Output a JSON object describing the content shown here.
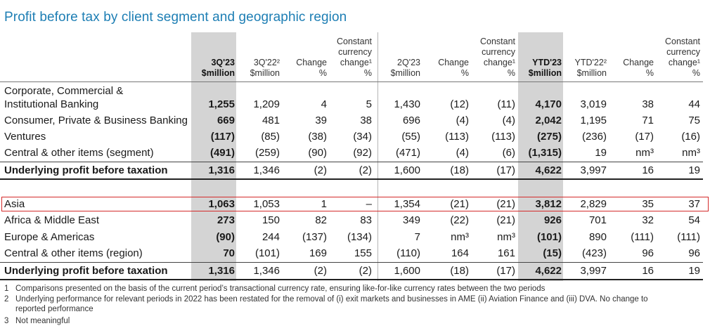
{
  "title": "Profit before tax by client segment and geographic region",
  "headers": {
    "q3_23": [
      "3Q'23",
      "$million"
    ],
    "q3_22": [
      "3Q'22²",
      "$million"
    ],
    "chg1": [
      "Change",
      "%"
    ],
    "ccc1": [
      "Constant",
      "currency",
      "change¹",
      "%"
    ],
    "q2_23": [
      "2Q'23",
      "$million"
    ],
    "chg2": [
      "Change",
      "%"
    ],
    "ccc2": [
      "Constant",
      "currency",
      "change¹",
      "%"
    ],
    "ytd23": [
      "YTD'23",
      "$million"
    ],
    "ytd22": [
      "YTD'22²",
      "$million"
    ],
    "chg3": [
      "Change",
      "%"
    ],
    "ccc3": [
      "Constant",
      "currency",
      "change¹",
      "%"
    ]
  },
  "segment_rows": [
    {
      "label": [
        "Corporate, Commercial &",
        "Institutional Banking"
      ],
      "values": [
        "1,255",
        "1,209",
        "4",
        "5",
        "1,430",
        "(12)",
        "(11)",
        "4,170",
        "3,019",
        "38",
        "44"
      ]
    },
    {
      "label": "Consumer, Private & Business Banking",
      "values": [
        "669",
        "481",
        "39",
        "38",
        "696",
        "(4)",
        "(4)",
        "2,042",
        "1,195",
        "71",
        "75"
      ]
    },
    {
      "label": "Ventures",
      "values": [
        "(117)",
        "(85)",
        "(38)",
        "(34)",
        "(55)",
        "(113)",
        "(113)",
        "(275)",
        "(236)",
        "(17)",
        "(16)"
      ]
    },
    {
      "label": "Central & other items (segment)",
      "values": [
        "(491)",
        "(259)",
        "(90)",
        "(92)",
        "(471)",
        "(4)",
        "(6)",
        "(1,315)",
        "19",
        "nm³",
        "nm³"
      ]
    },
    {
      "label": "Underlying profit before taxation",
      "values": [
        "1,316",
        "1,346",
        "(2)",
        "(2)",
        "1,600",
        "(18)",
        "(17)",
        "4,622",
        "3,997",
        "16",
        "19"
      ]
    }
  ],
  "region_rows": [
    {
      "label": "Asia",
      "values": [
        "1,063",
        "1,053",
        "1",
        "–",
        "1,354",
        "(21)",
        "(21)",
        "3,812",
        "2,829",
        "35",
        "37"
      ]
    },
    {
      "label": "Africa & Middle East",
      "values": [
        "273",
        "150",
        "82",
        "83",
        "349",
        "(22)",
        "(21)",
        "926",
        "701",
        "32",
        "54"
      ]
    },
    {
      "label": "Europe & Americas",
      "values": [
        "(90)",
        "244",
        "(137)",
        "(134)",
        "7",
        "nm³",
        "nm³",
        "(101)",
        "890",
        "(111)",
        "(111)"
      ]
    },
    {
      "label": "Central & other items (region)",
      "values": [
        "70",
        "(101)",
        "169",
        "155",
        "(110)",
        "164",
        "161",
        "(15)",
        "(423)",
        "96",
        "96"
      ]
    },
    {
      "label": "Underlying profit before taxation",
      "values": [
        "1,316",
        "1,346",
        "(2)",
        "(2)",
        "1,600",
        "(18)",
        "(17)",
        "4,622",
        "3,997",
        "16",
        "19"
      ]
    }
  ],
  "footnotes": [
    {
      "n": "1",
      "text": "Comparisons presented on the basis of the current period’s transactional currency rate, ensuring like-for-like currency rates between the two periods"
    },
    {
      "n": "2",
      "text": "Underlying performance for relevant periods in 2022 has been restated for the removal of (i) exit markets and businesses in AME (ii) Aviation Finance and (iii) DVA. No change to"
    },
    {
      "n": "",
      "text": "reported performance"
    },
    {
      "n": "3",
      "text": "Not meaningful"
    }
  ],
  "highlight_color": "#d42a2a",
  "title_color": "#1d7eb4"
}
